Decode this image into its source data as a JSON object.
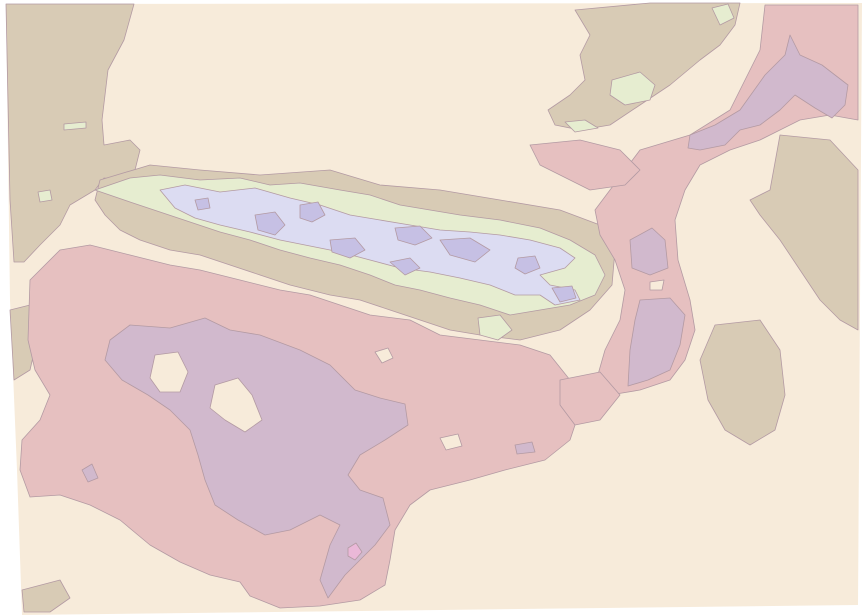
{
  "map": {
    "kind": "contour-choropleth",
    "labels_present": false,
    "palette": {
      "cream": "#f7ebda",
      "tan": "#d8cbb5",
      "pink": "#e6c0c0",
      "mauve": "#d1b9cd",
      "light_green": "#e6edd0",
      "lavender": "#dcdcf2",
      "periwinkle": "#c6c0e4",
      "hot_pink": "#eab8d8",
      "outline": "#b39aa3",
      "background": "#ffffff"
    }
  }
}
